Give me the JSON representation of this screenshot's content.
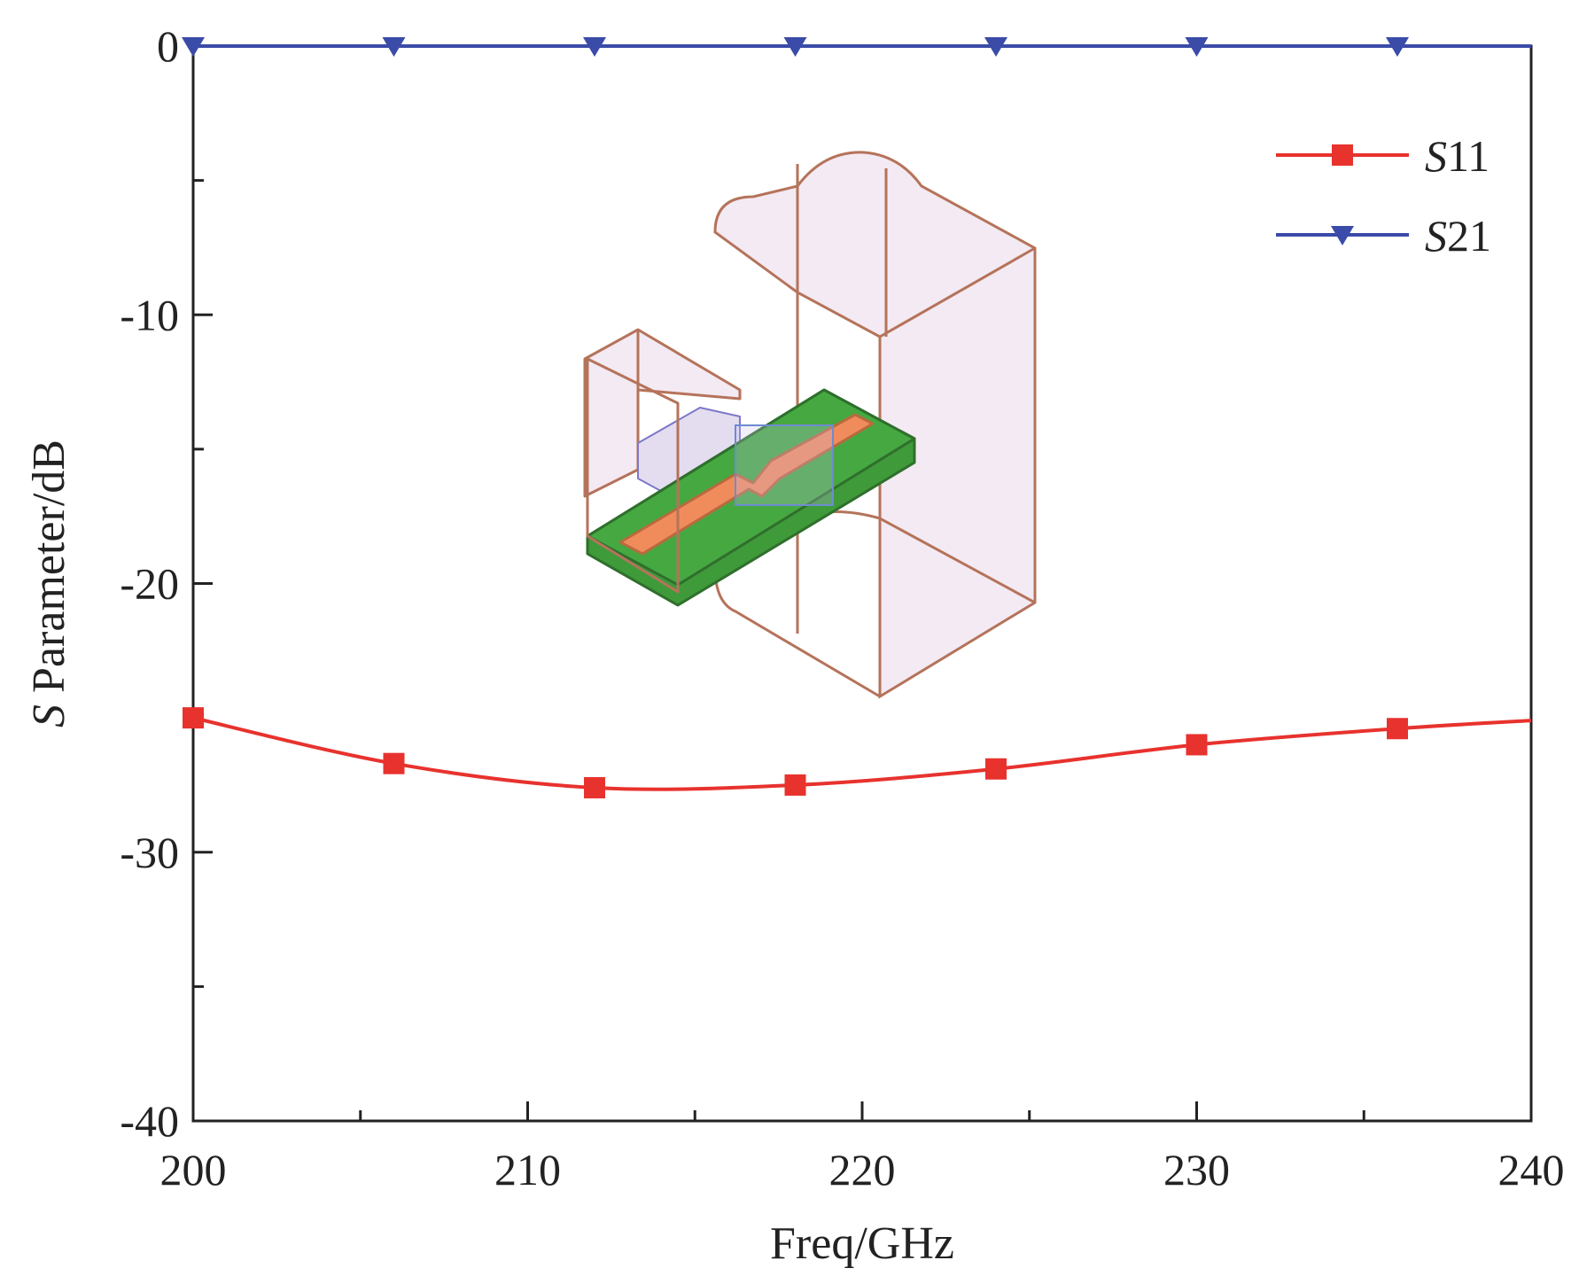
{
  "chart_data": {
    "type": "line",
    "title": "",
    "xlabel": "Freq/GHz",
    "ylabel_italic": "S",
    "ylabel_rest": " Parameter/dB",
    "xlim": [
      200,
      240
    ],
    "ylim": [
      -40,
      0
    ],
    "x_ticks": [
      200,
      210,
      220,
      230,
      240
    ],
    "x_minor_ticks": [
      205,
      215,
      225,
      235
    ],
    "y_ticks": [
      0,
      -10,
      -20,
      -30,
      -40
    ],
    "y_tick_labels": [
      "0",
      "-10",
      "-20",
      "-30",
      "-40"
    ],
    "y_minor_ticks": [
      -5,
      -15,
      -25,
      -35
    ],
    "legend_position": "top-right",
    "series": [
      {
        "name": "S11",
        "name_italic": "S",
        "name_num": "11",
        "color": "#e8322e",
        "marker": "square",
        "x": [
          200,
          206,
          212,
          218,
          224,
          230,
          236,
          240
        ],
        "y": [
          -25.0,
          -26.7,
          -27.6,
          -27.5,
          -26.9,
          -26.0,
          -25.4,
          -25.1
        ],
        "marker_x": [
          200,
          206,
          212,
          218,
          224,
          230,
          236
        ]
      },
      {
        "name": "S21",
        "name_italic": "S",
        "name_num": "21",
        "color": "#3a4ba8",
        "marker": "triangle-down",
        "x": [
          200,
          206,
          212,
          218,
          224,
          230,
          236,
          240
        ],
        "y": [
          0,
          0,
          0,
          0,
          0,
          0,
          0,
          0
        ],
        "marker_x": [
          200,
          206,
          212,
          218,
          224,
          230,
          236
        ]
      }
    ],
    "inset": {
      "description_icon": "waveguide-to-microstrip-transition-3d-icon",
      "outline_color": "#b5735a",
      "fill_color": "#f3eaf3",
      "substrate_color": "#3f9a3a",
      "strip_color": "#f08c5c"
    }
  }
}
